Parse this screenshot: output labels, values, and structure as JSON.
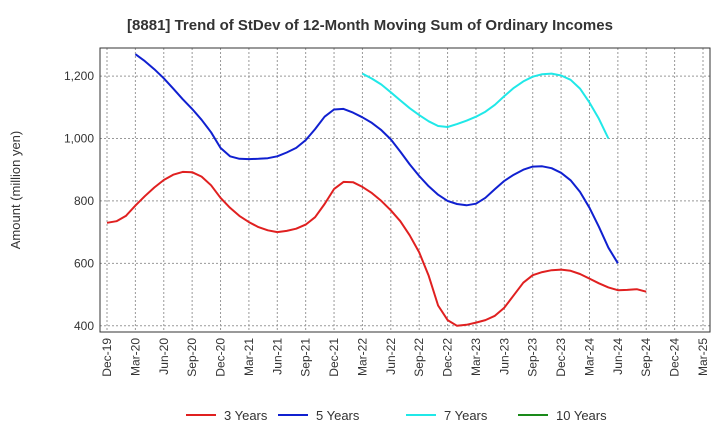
{
  "chart_data": {
    "type": "line",
    "title": "[8881]  Trend of StDev of 12-Month Moving Sum of Ordinary Incomes",
    "xlabel": "",
    "ylabel": "Amount (million yen)",
    "ylim": [
      380,
      1290
    ],
    "yticks": [
      400,
      600,
      800,
      1000,
      1200
    ],
    "ytick_labels": [
      "400",
      "600",
      "800",
      "1,000",
      "1,200"
    ],
    "x_start": "Dec-19",
    "x_end": "Mar-25",
    "xtick_labels": [
      "Dec-19",
      "Mar-20",
      "Jun-20",
      "Sep-20",
      "Dec-20",
      "Mar-21",
      "Jun-21",
      "Sep-21",
      "Dec-21",
      "Mar-22",
      "Jun-22",
      "Sep-22",
      "Dec-22",
      "Mar-23",
      "Jun-23",
      "Sep-23",
      "Dec-23",
      "Mar-24",
      "Jun-24",
      "Sep-24",
      "Dec-24",
      "Mar-25"
    ],
    "grid": true,
    "legend_position": "bottom",
    "series": [
      {
        "name": "3 Years",
        "color": "#e02020",
        "start": "Dec-19",
        "values": [
          730,
          735,
          752,
          785,
          815,
          843,
          867,
          884,
          893,
          892,
          878,
          850,
          810,
          778,
          752,
          732,
          716,
          706,
          700,
          704,
          711,
          724,
          748,
          790,
          838,
          861,
          860,
          845,
          825,
          800,
          770,
          735,
          690,
          635,
          560,
          465,
          418,
          400,
          403,
          410,
          418,
          432,
          458,
          498,
          538,
          562,
          572,
          578,
          580,
          576,
          566,
          551,
          536,
          523,
          514,
          515,
          517,
          509
        ]
      },
      {
        "name": "5 Years",
        "color": "#1020d0",
        "start": "Mar-20",
        "values": [
          1270,
          1248,
          1222,
          1193,
          1160,
          1126,
          1095,
          1060,
          1020,
          970,
          943,
          935,
          934,
          935,
          937,
          943,
          955,
          970,
          995,
          1030,
          1070,
          1093,
          1095,
          1083,
          1068,
          1050,
          1027,
          997,
          958,
          917,
          880,
          847,
          820,
          800,
          790,
          786,
          791,
          810,
          838,
          864,
          884,
          900,
          910,
          911,
          905,
          890,
          866,
          829,
          778,
          717,
          650,
          600
        ]
      },
      {
        "name": "7 Years",
        "color": "#20e8e8",
        "start": "Mar-22",
        "values": [
          1208,
          1192,
          1173,
          1148,
          1122,
          1097,
          1075,
          1055,
          1040,
          1037,
          1046,
          1057,
          1070,
          1086,
          1108,
          1136,
          1162,
          1183,
          1198,
          1206,
          1208,
          1202,
          1188,
          1160,
          1115,
          1063,
          1000
        ]
      },
      {
        "name": "10 Years",
        "color": "#1a8a1a",
        "start": "",
        "values": []
      }
    ]
  }
}
